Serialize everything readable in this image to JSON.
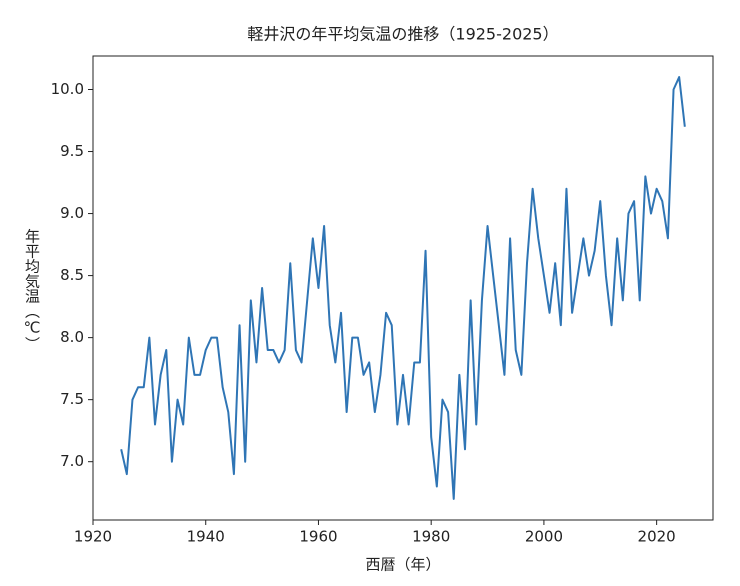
{
  "chart_data": {
    "type": "line",
    "title": "軽井沢の年平均気温の推移（1925-2025）",
    "x_label": "西暦（年）",
    "y_label": "年平均気温（℃）",
    "color": "#2f75b5",
    "x": [
      1925,
      1926,
      1927,
      1928,
      1929,
      1930,
      1931,
      1932,
      1933,
      1934,
      1935,
      1936,
      1937,
      1938,
      1939,
      1940,
      1941,
      1942,
      1943,
      1944,
      1945,
      1946,
      1947,
      1948,
      1949,
      1950,
      1951,
      1952,
      1953,
      1954,
      1955,
      1956,
      1957,
      1958,
      1959,
      1960,
      1961,
      1962,
      1963,
      1964,
      1965,
      1966,
      1967,
      1968,
      1969,
      1970,
      1971,
      1972,
      1973,
      1974,
      1975,
      1976,
      1977,
      1978,
      1979,
      1980,
      1981,
      1982,
      1983,
      1984,
      1985,
      1986,
      1987,
      1988,
      1989,
      1990,
      1991,
      1992,
      1993,
      1994,
      1995,
      1996,
      1997,
      1998,
      1999,
      2000,
      2001,
      2002,
      2003,
      2004,
      2005,
      2006,
      2007,
      2008,
      2009,
      2010,
      2011,
      2012,
      2013,
      2014,
      2015,
      2016,
      2017,
      2018,
      2019,
      2020,
      2021,
      2022,
      2023,
      2024,
      2025
    ],
    "values": [
      7.1,
      6.9,
      7.5,
      7.6,
      7.6,
      8.0,
      7.3,
      7.7,
      7.9,
      7.0,
      7.5,
      7.3,
      8.0,
      7.7,
      7.7,
      7.9,
      8.0,
      8.0,
      7.6,
      7.4,
      6.9,
      8.1,
      7.0,
      8.3,
      7.8,
      8.4,
      7.9,
      7.9,
      7.8,
      7.9,
      8.6,
      7.9,
      7.8,
      8.3,
      8.8,
      8.4,
      8.9,
      8.1,
      7.8,
      8.2,
      7.4,
      8.0,
      8.0,
      7.7,
      7.8,
      7.4,
      7.7,
      8.2,
      8.1,
      7.3,
      7.7,
      7.3,
      7.8,
      7.8,
      8.7,
      7.2,
      6.8,
      7.5,
      7.4,
      6.7,
      7.7,
      7.1,
      8.3,
      7.3,
      8.3,
      8.9,
      8.5,
      8.1,
      7.7,
      8.8,
      7.9,
      7.7,
      8.6,
      9.2,
      8.8,
      8.5,
      8.2,
      8.6,
      8.1,
      9.2,
      8.2,
      8.5,
      8.8,
      8.5,
      8.7,
      9.1,
      8.5,
      8.1,
      8.8,
      8.3,
      9.0,
      9.1,
      8.3,
      9.3,
      9.0,
      9.2,
      9.1,
      8.8,
      10.0,
      10.1,
      9.7
    ],
    "xlim": [
      1920,
      2030
    ],
    "xticks": [
      1920,
      1940,
      1960,
      1980,
      2000,
      2020
    ],
    "ylim": [
      6.53,
      10.27
    ],
    "yticks": [
      {
        "value": 7,
        "label": "7.0"
      },
      7.5,
      {
        "value": 8,
        "label": "8.0"
      },
      8.5,
      {
        "value": 9,
        "label": "9.0"
      },
      9.5,
      {
        "value": 10,
        "label": "10.0"
      }
    ],
    "grid": false
  }
}
